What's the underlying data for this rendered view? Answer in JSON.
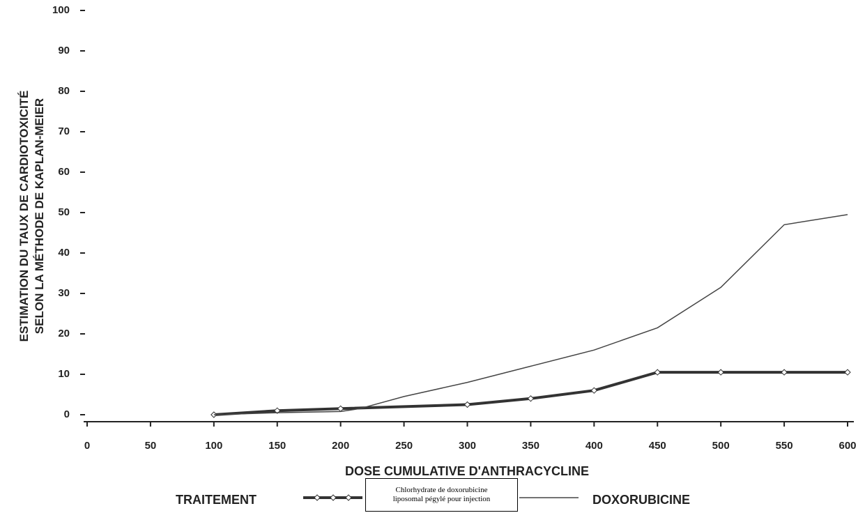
{
  "chart_data": {
    "type": "line",
    "y_label": [
      "ESTIMATION DU TAUX DE CARDIOTOXICITÉ",
      "SELON LA MÉTHODE DE KAPLAN-MEIER"
    ],
    "x_label": "DOSE CUMULATIVE D'ANTHRACYCLINE",
    "legend_title": "TRAITEMENT",
    "xlim": [
      0,
      600
    ],
    "xticks": [
      0,
      50,
      100,
      150,
      200,
      250,
      300,
      350,
      400,
      450,
      500,
      550,
      600
    ],
    "ylim": [
      0,
      100
    ],
    "yticks": [
      0,
      10,
      20,
      30,
      40,
      50,
      60,
      70,
      80,
      90,
      100
    ],
    "series": [
      {
        "name": "Chlorhydrate de doxorubicine liposomal pégylé pour injection",
        "color": "#333333",
        "width": 4,
        "markers": true,
        "x": [
          100,
          150,
          200,
          300,
          350,
          400,
          450,
          500,
          550,
          600
        ],
        "values": [
          0,
          1,
          1.5,
          2.5,
          4,
          6,
          10.5,
          10.5,
          10.5,
          10.5
        ]
      },
      {
        "name": "DOXORUBICINE",
        "color": "#444444",
        "width": 1.5,
        "markers": false,
        "x": [
          100,
          150,
          200,
          215,
          250,
          300,
          350,
          400,
          450,
          500,
          550,
          600
        ],
        "values": [
          0,
          0.5,
          0.8,
          1.5,
          4.5,
          8,
          12,
          16,
          21.5,
          31.5,
          47,
          49.5
        ]
      }
    ]
  }
}
